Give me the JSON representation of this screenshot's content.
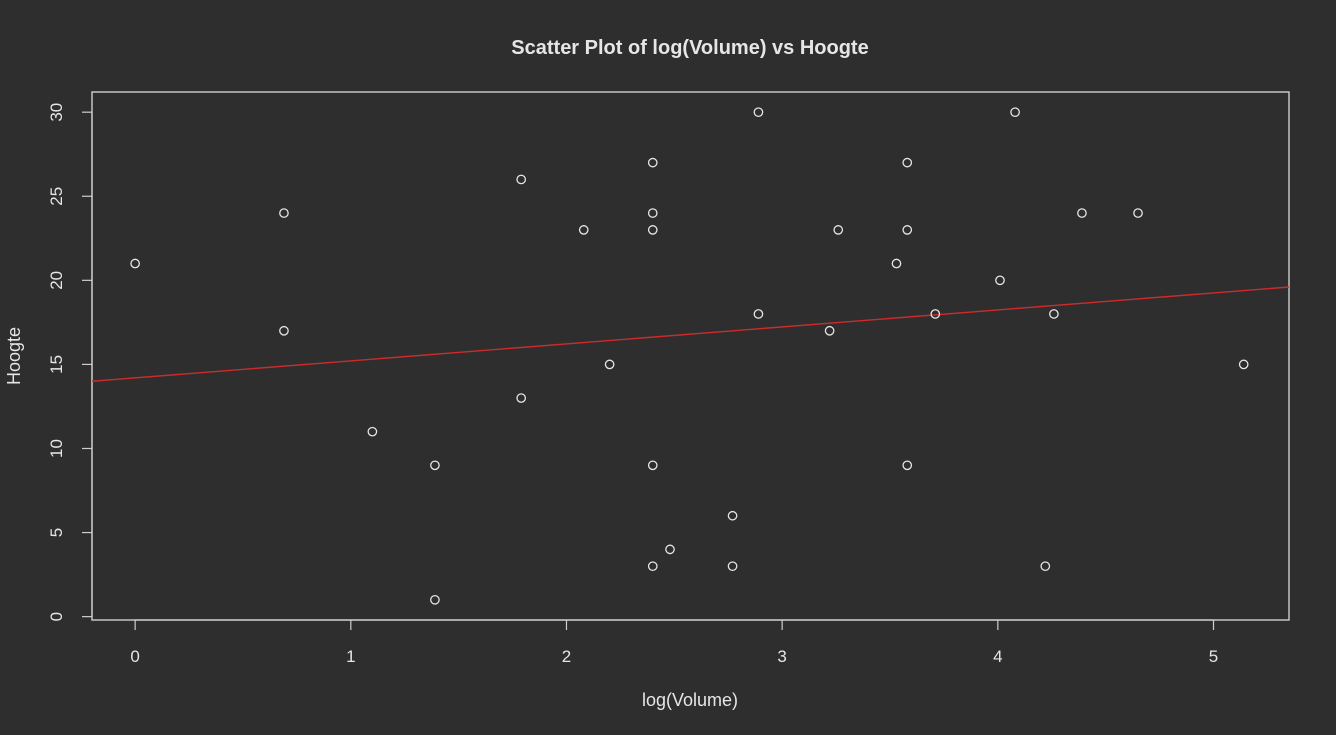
{
  "chart_data": {
    "type": "scatter",
    "title": "Scatter Plot of log(Volume) vs Hoogte",
    "xlabel": "log(Volume)",
    "ylabel": "Hoogte",
    "xlim": [
      -0.2,
      5.35
    ],
    "ylim": [
      -0.2,
      31.2
    ],
    "xticks": [
      0,
      1,
      2,
      3,
      4,
      5
    ],
    "yticks": [
      0,
      5,
      10,
      15,
      20,
      25,
      30
    ],
    "grid": false,
    "colors": {
      "background": "#2e2e2e",
      "foreground": "#e6e6e6",
      "regression_line": "#cc2b2b"
    },
    "points": [
      {
        "x": 0.0,
        "y": 21
      },
      {
        "x": 0.69,
        "y": 24
      },
      {
        "x": 0.69,
        "y": 17
      },
      {
        "x": 1.1,
        "y": 11
      },
      {
        "x": 1.39,
        "y": 9
      },
      {
        "x": 1.39,
        "y": 1
      },
      {
        "x": 1.79,
        "y": 26
      },
      {
        "x": 1.79,
        "y": 13
      },
      {
        "x": 2.08,
        "y": 23
      },
      {
        "x": 2.2,
        "y": 15
      },
      {
        "x": 2.4,
        "y": 27
      },
      {
        "x": 2.4,
        "y": 24
      },
      {
        "x": 2.4,
        "y": 23
      },
      {
        "x": 2.4,
        "y": 9
      },
      {
        "x": 2.4,
        "y": 3
      },
      {
        "x": 2.48,
        "y": 4
      },
      {
        "x": 2.77,
        "y": 6
      },
      {
        "x": 2.77,
        "y": 3
      },
      {
        "x": 2.89,
        "y": 30
      },
      {
        "x": 2.89,
        "y": 18
      },
      {
        "x": 3.22,
        "y": 17
      },
      {
        "x": 3.26,
        "y": 23
      },
      {
        "x": 3.53,
        "y": 21
      },
      {
        "x": 3.58,
        "y": 27
      },
      {
        "x": 3.58,
        "y": 23
      },
      {
        "x": 3.58,
        "y": 9
      },
      {
        "x": 3.71,
        "y": 18
      },
      {
        "x": 4.01,
        "y": 20
      },
      {
        "x": 4.08,
        "y": 30
      },
      {
        "x": 4.22,
        "y": 3
      },
      {
        "x": 4.26,
        "y": 18
      },
      {
        "x": 4.39,
        "y": 24
      },
      {
        "x": 4.65,
        "y": 24
      },
      {
        "x": 5.14,
        "y": 15
      }
    ],
    "regression_line": {
      "intercept": 14.2,
      "slope": 1.01
    }
  }
}
